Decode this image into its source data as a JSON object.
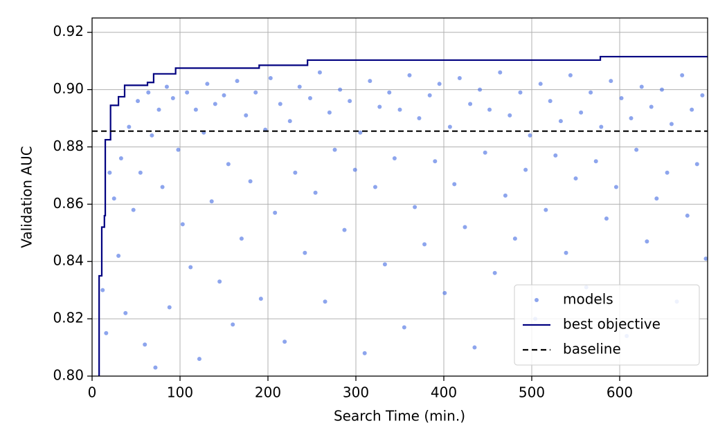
{
  "chart_data": {
    "type": "scatter",
    "xlabel": "Search Time (min.)",
    "ylabel": "Validation AUC",
    "xlim": [
      0,
      700
    ],
    "ylim": [
      0.8,
      0.925
    ],
    "xticks": [
      0,
      100,
      200,
      300,
      400,
      500,
      600
    ],
    "yticks": [
      {
        "value": 0.8,
        "label": "0.80"
      },
      0.82,
      0.84,
      0.86,
      0.88,
      {
        "value": 0.9,
        "label": "0.90"
      },
      0.92
    ],
    "grid": true,
    "legend": "lower right",
    "series": [
      {
        "name": "models",
        "type": "scatter",
        "color": "#4169e1",
        "x": [
          12,
          16,
          20,
          25,
          30,
          33,
          38,
          42,
          47,
          52,
          55,
          60,
          64,
          68,
          72,
          76,
          80,
          85,
          88,
          92,
          98,
          103,
          108,
          112,
          118,
          122,
          127,
          131,
          136,
          140,
          145,
          150,
          155,
          160,
          165,
          170,
          175,
          180,
          186,
          192,
          197,
          203,
          208,
          214,
          219,
          225,
          231,
          236,
          242,
          248,
          254,
          259,
          265,
          270,
          276,
          282,
          287,
          293,
          299,
          305,
          310,
          316,
          322,
          327,
          333,
          338,
          344,
          350,
          355,
          361,
          367,
          372,
          378,
          384,
          390,
          395,
          401,
          407,
          412,
          418,
          424,
          430,
          435,
          441,
          447,
          452,
          458,
          464,
          470,
          475,
          481,
          487,
          493,
          498,
          504,
          510,
          516,
          521,
          527,
          533,
          539,
          544,
          550,
          556,
          562,
          567,
          573,
          579,
          585,
          590,
          596,
          602,
          608,
          613,
          619,
          625,
          631,
          636,
          642,
          648,
          654,
          659,
          665,
          671,
          677,
          682,
          688,
          694,
          698
        ],
        "values": [
          0.83,
          0.815,
          0.871,
          0.862,
          0.842,
          0.876,
          0.822,
          0.887,
          0.858,
          0.896,
          0.871,
          0.811,
          0.899,
          0.884,
          0.803,
          0.893,
          0.866,
          0.901,
          0.824,
          0.897,
          0.879,
          0.853,
          0.899,
          0.838,
          0.893,
          0.806,
          0.885,
          0.902,
          0.861,
          0.895,
          0.833,
          0.898,
          0.874,
          0.818,
          0.903,
          0.848,
          0.891,
          0.868,
          0.899,
          0.827,
          0.886,
          0.904,
          0.857,
          0.895,
          0.812,
          0.889,
          0.871,
          0.901,
          0.843,
          0.897,
          0.864,
          0.906,
          0.826,
          0.892,
          0.879,
          0.9,
          0.851,
          0.896,
          0.872,
          0.885,
          0.808,
          0.903,
          0.866,
          0.894,
          0.839,
          0.899,
          0.876,
          0.893,
          0.817,
          0.905,
          0.859,
          0.89,
          0.846,
          0.898,
          0.875,
          0.902,
          0.829,
          0.887,
          0.867,
          0.904,
          0.852,
          0.895,
          0.81,
          0.9,
          0.878,
          0.893,
          0.836,
          0.906,
          0.863,
          0.891,
          0.848,
          0.899,
          0.872,
          0.884,
          0.82,
          0.902,
          0.858,
          0.896,
          0.877,
          0.889,
          0.843,
          0.905,
          0.869,
          0.892,
          0.831,
          0.899,
          0.875,
          0.887,
          0.855,
          0.903,
          0.866,
          0.897,
          0.814,
          0.89,
          0.879,
          0.901,
          0.847,
          0.894,
          0.862,
          0.9,
          0.871,
          0.888,
          0.826,
          0.905,
          0.856,
          0.893,
          0.874,
          0.898,
          0.841
        ]
      },
      {
        "name": "best objective",
        "type": "line",
        "color": "#000080",
        "x": [
          7,
          8,
          8,
          11,
          11,
          14,
          14,
          15,
          15,
          21,
          21,
          30,
          30,
          37,
          37,
          63,
          63,
          70,
          70,
          95,
          95,
          190,
          190,
          245,
          245,
          578,
          578,
          700
        ],
        "values": [
          0.8,
          0.8,
          0.835,
          0.835,
          0.852,
          0.852,
          0.856,
          0.856,
          0.8825,
          0.8825,
          0.8945,
          0.8945,
          0.8975,
          0.8975,
          0.9015,
          0.9015,
          0.9025,
          0.9025,
          0.9055,
          0.9055,
          0.9075,
          0.9075,
          0.9085,
          0.9085,
          0.9103,
          0.9103,
          0.9115,
          0.9115
        ]
      },
      {
        "name": "baseline",
        "type": "hline",
        "color": "#000000",
        "dashed": true,
        "values": [
          0.8855
        ]
      }
    ]
  }
}
